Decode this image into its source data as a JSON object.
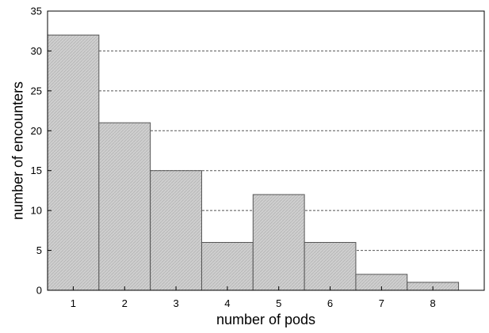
{
  "chart_data": {
    "type": "bar",
    "categories": [
      "1",
      "2",
      "3",
      "4",
      "5",
      "6",
      "7",
      "8"
    ],
    "values": [
      32,
      21,
      15,
      6,
      12,
      6,
      2,
      1
    ],
    "xlabel": "number of pods",
    "ylabel": "number of encounters",
    "ylim": [
      0,
      35
    ],
    "yticks": [
      "0",
      "5",
      "10",
      "15",
      "20",
      "25",
      "30",
      "35"
    ],
    "grid": "horizontal-dashed",
    "legend": "none",
    "bar_color": "#c8c8c8",
    "bar_edge_color": "#555555",
    "grid_color": "#555555"
  }
}
